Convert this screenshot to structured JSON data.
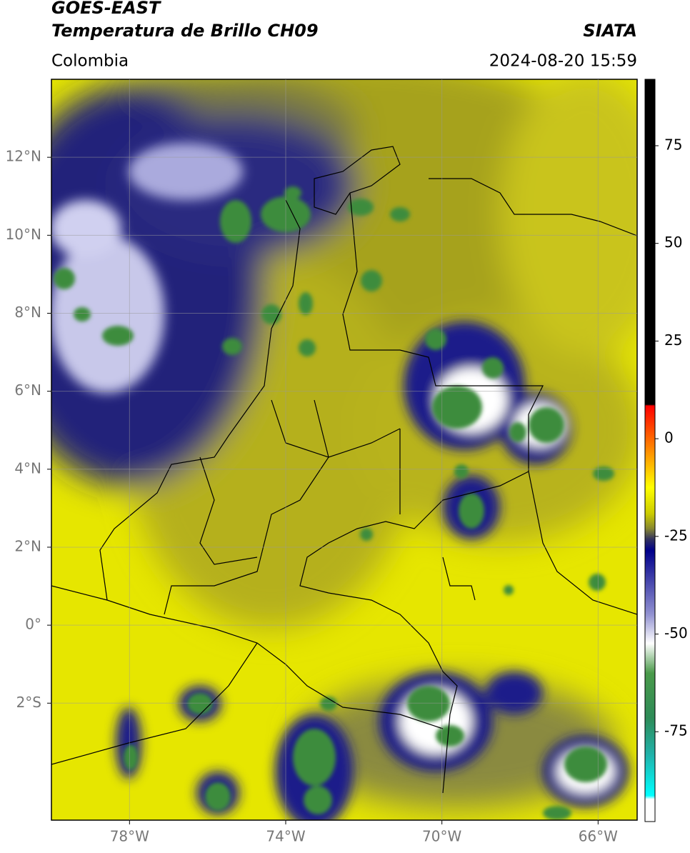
{
  "chart_data": {
    "type": "map",
    "title": "GOES-EAST",
    "subtitle": "Temperatura de Brillo CH09",
    "region": "Colombia",
    "source": "SIATA",
    "timestamp": "2024-08-20 15:59",
    "xlim": [
      -80,
      -65
    ],
    "xticks": [
      {
        "value": -78,
        "label": "78°W"
      },
      {
        "value": -74,
        "label": "74°W"
      },
      {
        "value": -70,
        "label": "70°W"
      },
      {
        "value": -66,
        "label": "66°W"
      }
    ],
    "ylim": [
      -5,
      14
    ],
    "yticks": [
      {
        "value": -2,
        "label": "2°S"
      },
      {
        "value": 0,
        "label": "0°"
      },
      {
        "value": 2,
        "label": "2°N"
      },
      {
        "value": 4,
        "label": "4°N"
      },
      {
        "value": 6,
        "label": "6°N"
      },
      {
        "value": 8,
        "label": "8°N"
      },
      {
        "value": 10,
        "label": "10°N"
      },
      {
        "value": 12,
        "label": "12°N"
      }
    ],
    "grid": true,
    "colorbar": {
      "lim": [
        -98,
        92
      ],
      "ticks": [
        75,
        50,
        25,
        0,
        -25,
        -50,
        -75
      ]
    }
  }
}
